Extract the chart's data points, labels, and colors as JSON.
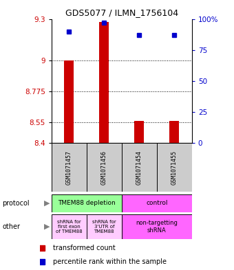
{
  "title": "GDS5077 / ILMN_1756104",
  "samples": [
    "GSM1071457",
    "GSM1071456",
    "GSM1071454",
    "GSM1071455"
  ],
  "bar_values": [
    9.0,
    9.28,
    8.56,
    8.56
  ],
  "bar_base": 8.4,
  "percentile_values": [
    90,
    97,
    87,
    87
  ],
  "y_left_ticks": [
    9.3,
    9.0,
    8.775,
    8.55,
    8.4
  ],
  "y_left_labels": [
    "9.3",
    "9",
    "8.775",
    "8.55",
    "8.4"
  ],
  "y_right_ticks": [
    100,
    75,
    50,
    25,
    0
  ],
  "y_right_labels": [
    "100%",
    "75",
    "50",
    "25",
    "0"
  ],
  "ylim": [
    8.4,
    9.3
  ],
  "percentile_ylim": [
    0,
    100
  ],
  "bar_color": "#cc0000",
  "dot_color": "#0000cc",
  "protocol_labels": [
    "TMEM88 depletion",
    "control"
  ],
  "protocol_colors": [
    "#99ff99",
    "#ff66ff"
  ],
  "other_labels": [
    "shRNA for\nfirst exon\nof TMEM88",
    "shRNA for\n3'UTR of\nTMEM88",
    "non-targetting\nshRNA"
  ],
  "other_colors": [
    "#ffccff",
    "#ffccff",
    "#ff66ff"
  ],
  "legend_bar_color": "#cc0000",
  "legend_dot_color": "#0000cc",
  "left_label_color": "#cc0000",
  "right_label_color": "#0000cc",
  "sample_box_color": "#cccccc",
  "grid_dotted_ticks": [
    9.0,
    8.775,
    8.55
  ]
}
